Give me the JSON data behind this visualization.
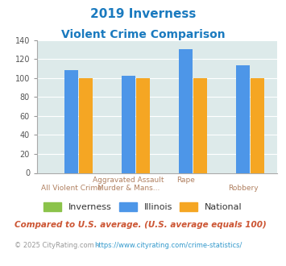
{
  "title_line1": "2019 Inverness",
  "title_line2": "Violent Crime Comparison",
  "inverness_values": [
    0,
    0,
    0,
    0
  ],
  "illinois_values": [
    108,
    102,
    130,
    113
  ],
  "national_values": [
    100,
    100,
    100,
    100
  ],
  "x_labels_line1": [
    "",
    "Aggravated Assault",
    "Rape",
    ""
  ],
  "x_labels_line2": [
    "All Violent Crime",
    "Murder & Mans...",
    "",
    "Robbery"
  ],
  "color_inverness": "#8bc34a",
  "color_illinois": "#4d96e8",
  "color_national": "#f5a623",
  "ylim": [
    0,
    140
  ],
  "yticks": [
    0,
    20,
    40,
    60,
    80,
    100,
    120,
    140
  ],
  "bg_color": "#ddeaea",
  "title_color": "#1a7abf",
  "xlabel_color_top": "#b08060",
  "xlabel_color_bot": "#b08060",
  "footer_text": "Compared to U.S. average. (U.S. average equals 100)",
  "copyright_prefix": "© 2025 CityRating.com - ",
  "copyright_link": "https://www.cityrating.com/crime-statistics/",
  "footer_color": "#cc5533",
  "copyright_color": "#999999",
  "copyright_link_color": "#3399cc"
}
